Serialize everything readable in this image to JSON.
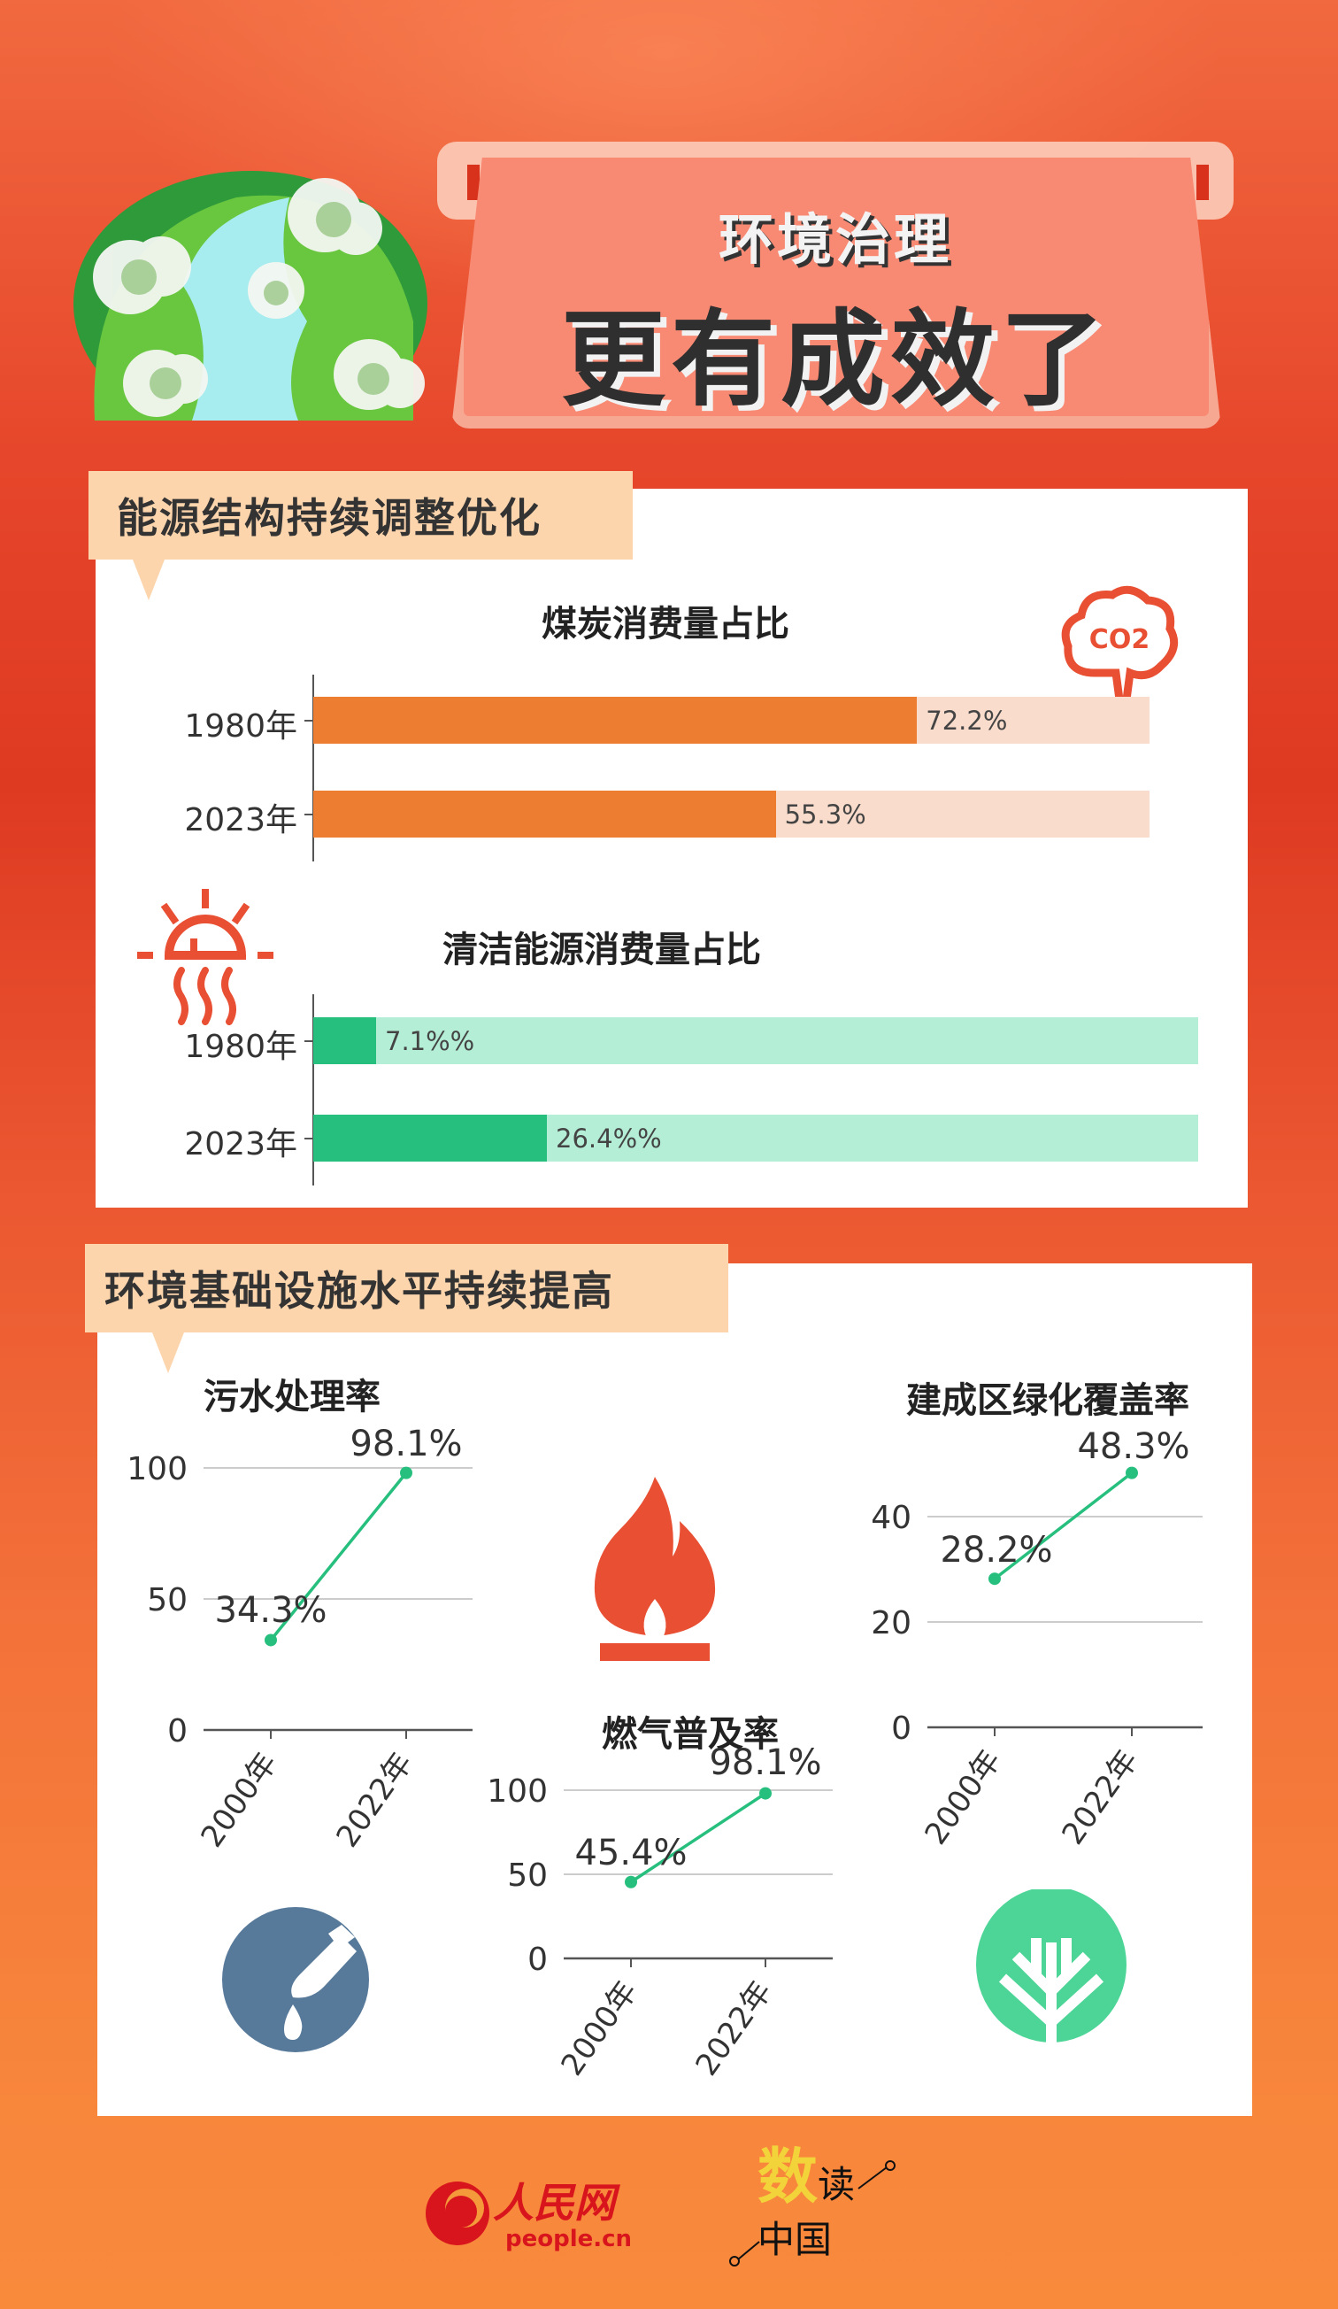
{
  "header": {
    "title_line1": "环境治理",
    "title_line2": "更有成效了"
  },
  "section1": {
    "label": "能源结构持续调整优化",
    "coal": {
      "title": "煤炭消费量占比",
      "icon": "co2-cloud-icon",
      "co2_text": "CO2"
    },
    "clean": {
      "title": "清洁能源消费量占比",
      "icon": "sun-heat-icon"
    }
  },
  "section2": {
    "label": "环境基础设施水平持续提高",
    "icons": [
      "faucet-water-icon",
      "gas-flame-icon",
      "tree-icon"
    ]
  },
  "footer": {
    "logo1_name": "人民网",
    "logo1_url": "people.cn",
    "logo2_text": "数读中国"
  },
  "colors": {
    "coal_bar": "#ec7d31",
    "coal_track": "#f9dccb",
    "clean_bar": "#27bf7e",
    "clean_track": "#b4eed6",
    "line": "#27bf7e",
    "flame": "#e84f33",
    "water": "#587a9a",
    "tree": "#4dd597",
    "section_label_bg": "#fdd5ad"
  },
  "chart_data": [
    {
      "type": "bar",
      "orientation": "horizontal",
      "title": "煤炭消费量占比",
      "categories": [
        "1980年",
        "2023年"
      ],
      "values": [
        72.2,
        55.3
      ],
      "labels": [
        "72.2%",
        "55.3%"
      ],
      "xlim": [
        0,
        100
      ]
    },
    {
      "type": "bar",
      "orientation": "horizontal",
      "title": "清洁能源消费量占比",
      "categories": [
        "1980年",
        "2023年"
      ],
      "values": [
        7.1,
        26.4
      ],
      "labels": [
        "7.1%%",
        "26.4%%"
      ],
      "xlim": [
        0,
        100
      ]
    },
    {
      "type": "line",
      "title": "污水处理率",
      "categories": [
        "2000年",
        "2022年"
      ],
      "values": [
        34.3,
        98.1
      ],
      "labels": [
        "34.3%",
        "98.1%"
      ],
      "ylim": [
        0,
        100
      ],
      "yticks": [
        "0",
        "50",
        "100"
      ],
      "grid": true
    },
    {
      "type": "line",
      "title": "燃气普及率",
      "categories": [
        "2000年",
        "2022年"
      ],
      "values": [
        45.4,
        98.1
      ],
      "labels": [
        "45.4%",
        "98.1%"
      ],
      "ylim": [
        0,
        100
      ],
      "yticks": [
        "0",
        "50",
        "100"
      ],
      "grid": true
    },
    {
      "type": "line",
      "title": "建成区绿化覆盖率",
      "categories": [
        "2000年",
        "2022年"
      ],
      "values": [
        28.2,
        48.3
      ],
      "labels": [
        "28.2%",
        "48.3%"
      ],
      "ylim": [
        0,
        50
      ],
      "yticks": [
        "0",
        "20",
        "40"
      ],
      "grid": true
    }
  ]
}
